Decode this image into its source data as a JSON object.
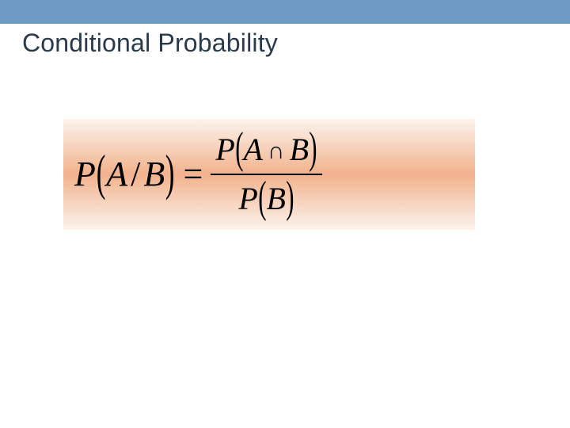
{
  "colors": {
    "top_bar": "#6d9bc5",
    "title": "#2a3a4a",
    "formula": "#000000",
    "gradient_outer": "#fcf4ee",
    "gradient_mid": "#f2b28c"
  },
  "title": "Conditional Probability",
  "formula": {
    "lhs_P": "P",
    "lhs_arg_A": "A",
    "lhs_slash": "/",
    "lhs_arg_B": "B",
    "equals": "=",
    "num_P": "P",
    "num_A": "A",
    "num_cap": "∩",
    "num_B": "B",
    "den_P": "P",
    "den_B": "B"
  }
}
